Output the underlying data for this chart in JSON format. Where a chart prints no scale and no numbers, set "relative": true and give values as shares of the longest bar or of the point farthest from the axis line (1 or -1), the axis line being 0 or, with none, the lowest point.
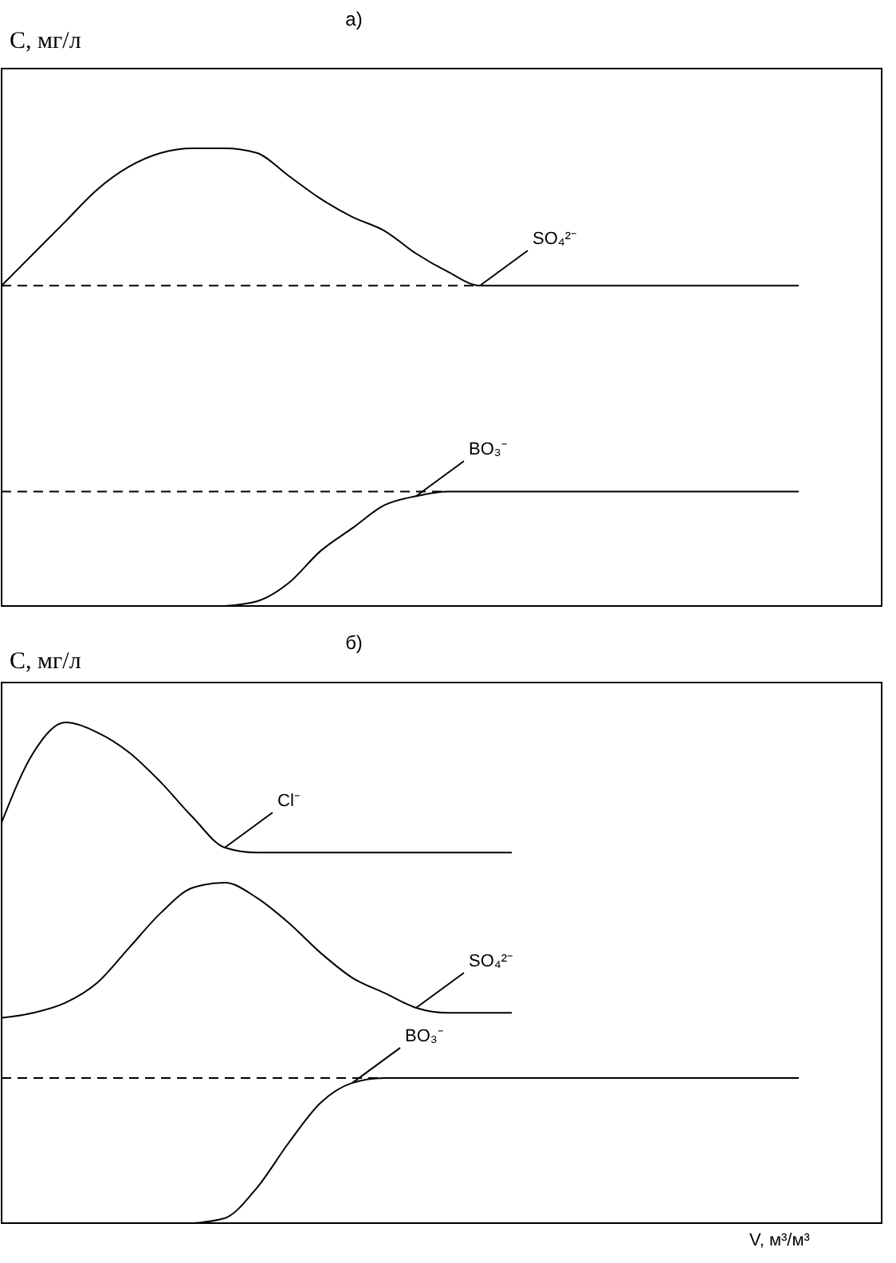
{
  "chart_data": [
    {
      "type": "line",
      "title": "а)",
      "ylabel": "С, мг/л",
      "relative": true,
      "categories": [
        null,
        null,
        null,
        null,
        null,
        null,
        null,
        null,
        null,
        null,
        null,
        null,
        null,
        null,
        null,
        null,
        null,
        null,
        null,
        null,
        null,
        null,
        null,
        null,
        null,
        null
      ],
      "series": [
        {
          "name": "SO₄²⁻",
          "color": "#000000",
          "line_style": "solid",
          "values": [
            0.7,
            0.77,
            0.84,
            0.91,
            0.96,
            0.99,
            1.0,
            1.0,
            0.99,
            0.94,
            0.89,
            0.85,
            0.82,
            0.77,
            0.73,
            0.7,
            0.7,
            0.7,
            0.7,
            0.7,
            0.7,
            0.7,
            0.7,
            0.7,
            0.7,
            0.7
          ]
        },
        {
          "color": "#000000",
          "line_style": "dashed",
          "values": [
            0.7,
            0.7,
            0.7,
            0.7,
            0.7,
            0.7,
            0.7,
            0.7,
            0.7,
            0.7,
            0.7,
            0.7,
            0.7,
            0.7,
            0.7,
            0.7,
            null,
            null,
            null,
            null,
            null,
            null,
            null,
            null,
            null,
            null
          ]
        },
        {
          "name": "BO₃⁻",
          "color": "#000000",
          "line_style": "solid",
          "values": [
            null,
            null,
            null,
            null,
            null,
            null,
            null,
            0,
            0.01,
            0.05,
            0.12,
            0.17,
            0.22,
            0.24,
            0.25,
            0.25,
            0.25,
            0.25,
            0.25,
            0.25,
            0.25,
            0.25,
            0.25,
            0.25,
            0.25,
            0.25
          ]
        },
        {
          "color": "#000000",
          "line_style": "dashed",
          "values": [
            0.25,
            0.25,
            0.25,
            0.25,
            0.25,
            0.25,
            0.25,
            0.25,
            0.25,
            0.25,
            0.25,
            0.25,
            0.25,
            0.25,
            0.25,
            null,
            null,
            null,
            null,
            null,
            null,
            null,
            null,
            null,
            null,
            null
          ]
        }
      ]
    },
    {
      "type": "line",
      "title": "б)",
      "ylabel": "С, мг/л",
      "xlabel": "V, м³/м³",
      "relative": true,
      "categories": [
        null,
        null,
        null,
        null,
        null,
        null,
        null,
        null,
        null,
        null,
        null,
        null,
        null,
        null,
        null,
        null,
        null,
        null,
        null,
        null,
        null,
        null,
        null,
        null,
        null,
        null
      ],
      "series": [
        {
          "name": "Cl⁻",
          "color": "#000000",
          "line_style": "solid",
          "values": [
            0.8,
            0.94,
            1.0,
            0.98,
            0.94,
            0.88,
            0.81,
            0.75,
            0.74,
            0.74,
            0.74,
            0.74,
            0.74,
            0.74,
            0.74,
            0.74,
            0.74,
            null,
            null,
            null,
            null,
            null,
            null,
            null,
            null,
            null
          ]
        },
        {
          "name": "SO₄²⁻",
          "color": "#000000",
          "line_style": "solid",
          "values": [
            0.41,
            0.42,
            0.44,
            0.48,
            0.55,
            0.62,
            0.67,
            0.68,
            0.65,
            0.6,
            0.54,
            0.49,
            0.46,
            0.43,
            0.42,
            0.42,
            0.42,
            null,
            null,
            null,
            null,
            null,
            null,
            null,
            null,
            null
          ]
        },
        {
          "name": "BO₃⁻",
          "color": "#000000",
          "line_style": "solid",
          "values": [
            null,
            null,
            null,
            null,
            null,
            null,
            0,
            0.01,
            0.07,
            0.16,
            0.24,
            0.28,
            0.29,
            0.29,
            0.29,
            0.29,
            0.29,
            0.29,
            0.29,
            0.29,
            0.29,
            0.29,
            0.29,
            0.29,
            0.29,
            0.29
          ]
        },
        {
          "color": "#000000",
          "line_style": "dashed",
          "values": [
            0.29,
            0.29,
            0.29,
            0.29,
            0.29,
            0.29,
            0.29,
            0.29,
            0.29,
            0.29,
            0.29,
            0.29,
            0.29,
            null,
            null,
            null,
            null,
            null,
            null,
            null,
            null,
            null,
            null,
            null,
            null,
            null
          ]
        }
      ]
    }
  ]
}
